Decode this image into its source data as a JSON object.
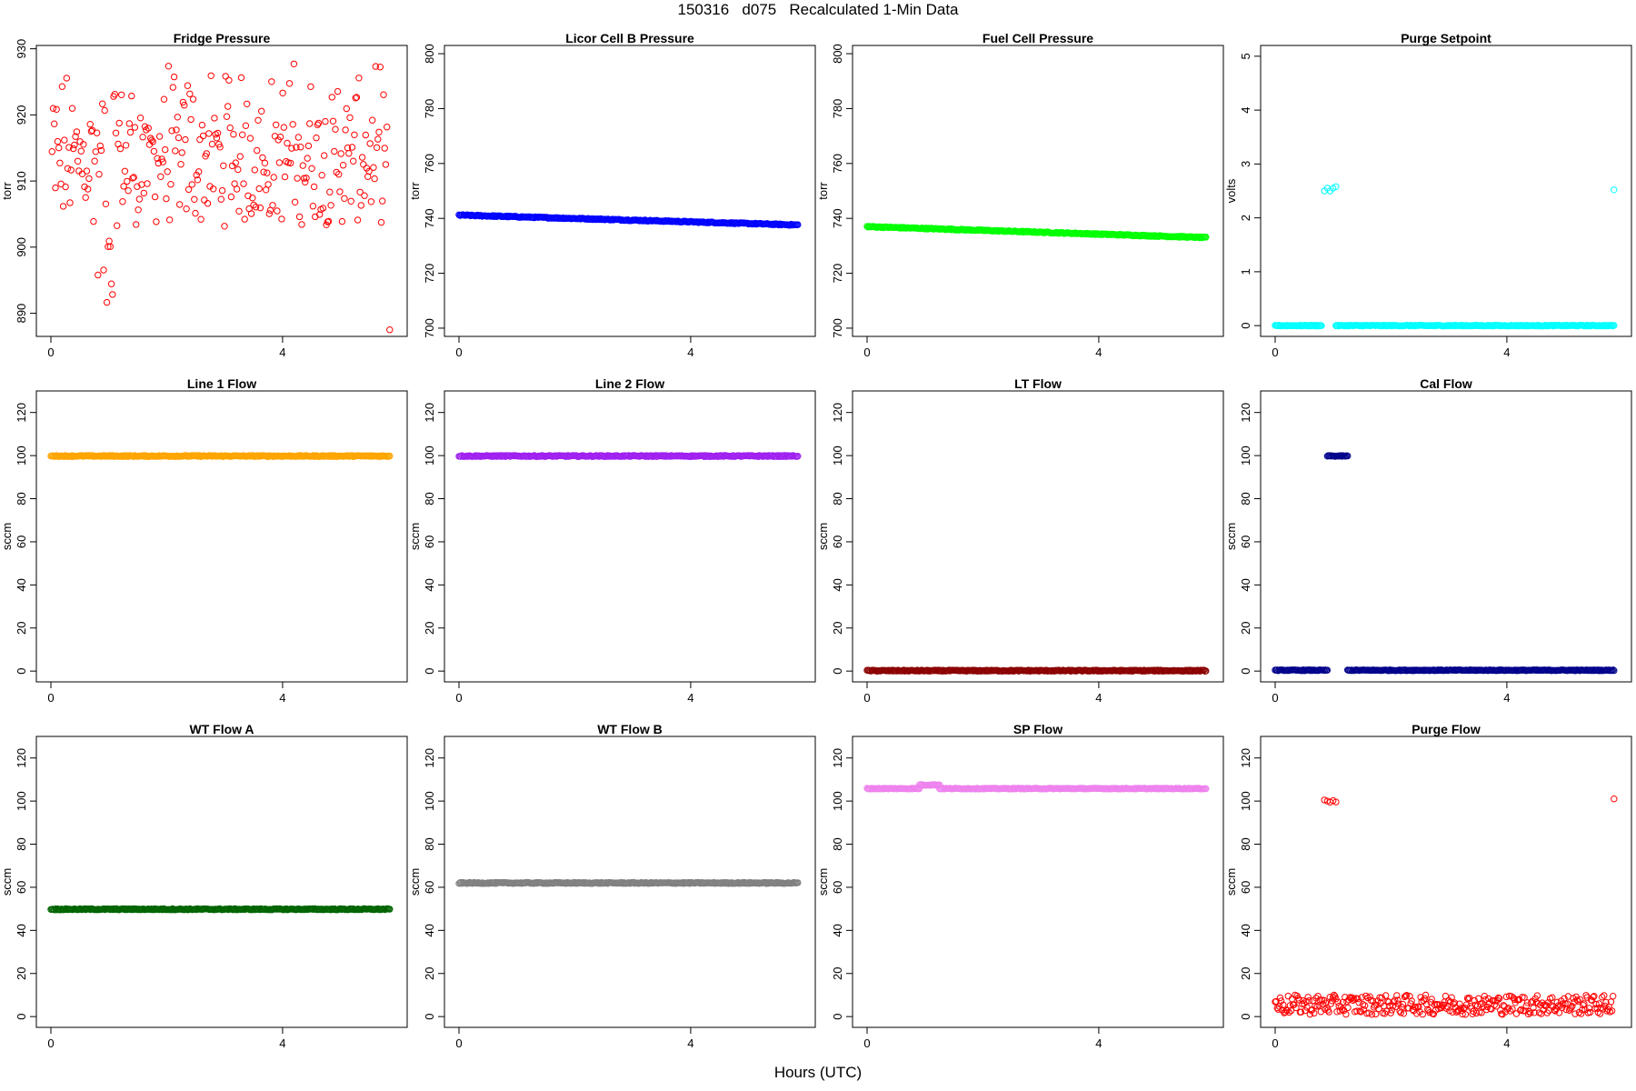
{
  "figure": {
    "title": "150316   d075   Recalculated 1-Min Data",
    "xlabel": "Hours (UTC)"
  },
  "chart_data": [
    {
      "type": "scatter",
      "title": "Fridge Pressure",
      "ylabel": "torr",
      "xlim": [
        0,
        5.9
      ],
      "ylim": [
        886.5,
        930.5
      ],
      "xticks": [
        0,
        4
      ],
      "yticks": [
        890,
        900,
        910,
        920,
        930
      ],
      "color": "#ff0000",
      "marker": "open-circle",
      "description_values": {
        "mean": 916,
        "spread": [
          903,
          929
        ],
        "dip": {
          "x": [
            0.8,
            1.1
          ],
          "y": [
            888,
            903
          ]
        },
        "outlier": {
          "x": 5.85,
          "y": 887.5
        }
      }
    },
    {
      "type": "scatter",
      "title": "Licor Cell B Pressure",
      "ylabel": "torr",
      "xlim": [
        0,
        5.9
      ],
      "ylim": [
        697,
        803
      ],
      "xticks": [
        0,
        4
      ],
      "yticks": [
        700,
        720,
        740,
        760,
        780,
        800
      ],
      "color": "#0000ff",
      "marker": "open-circle",
      "line": {
        "x": [
          0,
          5.85
        ],
        "y": [
          741.2,
          737.6
        ]
      }
    },
    {
      "type": "scatter",
      "title": "Fuel Cell Pressure",
      "ylabel": "torr",
      "xlim": [
        0,
        5.9
      ],
      "ylim": [
        697,
        803
      ],
      "xticks": [
        0,
        4
      ],
      "yticks": [
        700,
        720,
        740,
        760,
        780,
        800
      ],
      "color": "#00ff00",
      "marker": "open-circle",
      "line": {
        "x": [
          0,
          5.85
        ],
        "y": [
          737.0,
          733.0
        ]
      }
    },
    {
      "type": "scatter",
      "title": "Purge Setpoint",
      "ylabel": "volts",
      "xlim": [
        0,
        5.9
      ],
      "ylim": [
        -0.2,
        5.2
      ],
      "xticks": [
        0,
        4
      ],
      "yticks": [
        0,
        1,
        2,
        3,
        4,
        5
      ],
      "color": "#00ffff",
      "marker": "open-circle",
      "segments": [
        {
          "x": [
            0,
            0.8
          ],
          "y": 0
        },
        {
          "x": 1.05,
          "y": 0
        },
        {
          "x": [
            1.05,
            5.85
          ],
          "y": 0
        }
      ],
      "points": [
        {
          "x": 0.85,
          "y": 2.5
        },
        {
          "x": 0.9,
          "y": 2.55
        },
        {
          "x": 0.95,
          "y": 2.5
        },
        {
          "x": 1.0,
          "y": 2.55
        },
        {
          "x": 1.05,
          "y": 2.58
        },
        {
          "x": 5.85,
          "y": 2.52
        }
      ]
    },
    {
      "type": "scatter",
      "title": "Line 1 Flow",
      "ylabel": "sccm",
      "xlim": [
        0,
        5.9
      ],
      "ylim": [
        -5,
        130
      ],
      "xticks": [
        0,
        4
      ],
      "yticks": [
        0,
        20,
        40,
        60,
        80,
        100,
        120
      ],
      "color": "#ffa500",
      "marker": "open-circle",
      "line": {
        "x": [
          0,
          5.85
        ],
        "y": [
          99.8,
          99.8
        ]
      }
    },
    {
      "type": "scatter",
      "title": "Line 2 Flow",
      "ylabel": "sccm",
      "xlim": [
        0,
        5.9
      ],
      "ylim": [
        -5,
        130
      ],
      "xticks": [
        0,
        4
      ],
      "yticks": [
        0,
        20,
        40,
        60,
        80,
        100,
        120
      ],
      "color": "#a020f0",
      "marker": "open-circle",
      "line": {
        "x": [
          0,
          5.85
        ],
        "y": [
          99.8,
          99.8
        ]
      }
    },
    {
      "type": "scatter",
      "title": "LT Flow",
      "ylabel": "sccm",
      "xlim": [
        0,
        5.9
      ],
      "ylim": [
        -5,
        130
      ],
      "xticks": [
        0,
        4
      ],
      "yticks": [
        0,
        20,
        40,
        60,
        80,
        100,
        120
      ],
      "color": "#8b0000",
      "marker": "open-circle",
      "line": {
        "x": [
          0,
          5.85
        ],
        "y": [
          0.2,
          0.2
        ]
      }
    },
    {
      "type": "scatter",
      "title": "Cal Flow",
      "ylabel": "sccm",
      "xlim": [
        0,
        5.9
      ],
      "ylim": [
        -5,
        130
      ],
      "xticks": [
        0,
        4
      ],
      "yticks": [
        0,
        20,
        40,
        60,
        80,
        100,
        120
      ],
      "color": "#00008b",
      "marker": "open-circle",
      "segments": [
        {
          "x": [
            0,
            0.9
          ],
          "y": 0.4
        },
        {
          "x": [
            0.9,
            1.25
          ],
          "y": 99.8
        },
        {
          "x": [
            1.25,
            5.85
          ],
          "y": 0.4
        }
      ]
    },
    {
      "type": "scatter",
      "title": "WT Flow A",
      "ylabel": "sccm",
      "xlim": [
        0,
        5.9
      ],
      "ylim": [
        -5,
        130
      ],
      "xticks": [
        0,
        4
      ],
      "yticks": [
        0,
        20,
        40,
        60,
        80,
        100,
        120
      ],
      "color": "#006400",
      "marker": "open-circle",
      "line": {
        "x": [
          0,
          5.85
        ],
        "y": [
          49.8,
          49.8
        ]
      }
    },
    {
      "type": "scatter",
      "title": "WT Flow B",
      "ylabel": "sccm",
      "xlim": [
        0,
        5.9
      ],
      "ylim": [
        -5,
        130
      ],
      "xticks": [
        0,
        4
      ],
      "yticks": [
        0,
        20,
        40,
        60,
        80,
        100,
        120
      ],
      "color": "#808080",
      "marker": "open-circle",
      "line": {
        "x": [
          0,
          5.85
        ],
        "y": [
          62.0,
          62.0
        ]
      }
    },
    {
      "type": "scatter",
      "title": "SP Flow",
      "ylabel": "sccm",
      "xlim": [
        0,
        5.9
      ],
      "ylim": [
        -5,
        130
      ],
      "xticks": [
        0,
        4
      ],
      "yticks": [
        0,
        20,
        40,
        60,
        80,
        100,
        120
      ],
      "color": "#ee82ee",
      "marker": "open-circle",
      "segments": [
        {
          "x": [
            0,
            0.9
          ],
          "y": 105.8
        },
        {
          "x": [
            0.9,
            1.25
          ],
          "y": 107.5
        },
        {
          "x": [
            1.25,
            5.85
          ],
          "y": 105.8
        }
      ]
    },
    {
      "type": "scatter",
      "title": "Purge Flow",
      "ylabel": "sccm",
      "xlim": [
        0,
        5.9
      ],
      "ylim": [
        -5,
        130
      ],
      "xticks": [
        0,
        4
      ],
      "yticks": [
        0,
        20,
        40,
        60,
        80,
        100,
        120
      ],
      "color": "#ff0000",
      "marker": "open-circle",
      "noise": {
        "x": [
          0,
          5.85
        ],
        "mean": 5,
        "spread": [
          1,
          10
        ]
      },
      "points": [
        {
          "x": 0.85,
          "y": 100.5
        },
        {
          "x": 0.9,
          "y": 100
        },
        {
          "x": 0.95,
          "y": 99.5
        },
        {
          "x": 1.0,
          "y": 100.2
        },
        {
          "x": 1.05,
          "y": 99.6
        },
        {
          "x": 5.85,
          "y": 101
        }
      ]
    }
  ]
}
